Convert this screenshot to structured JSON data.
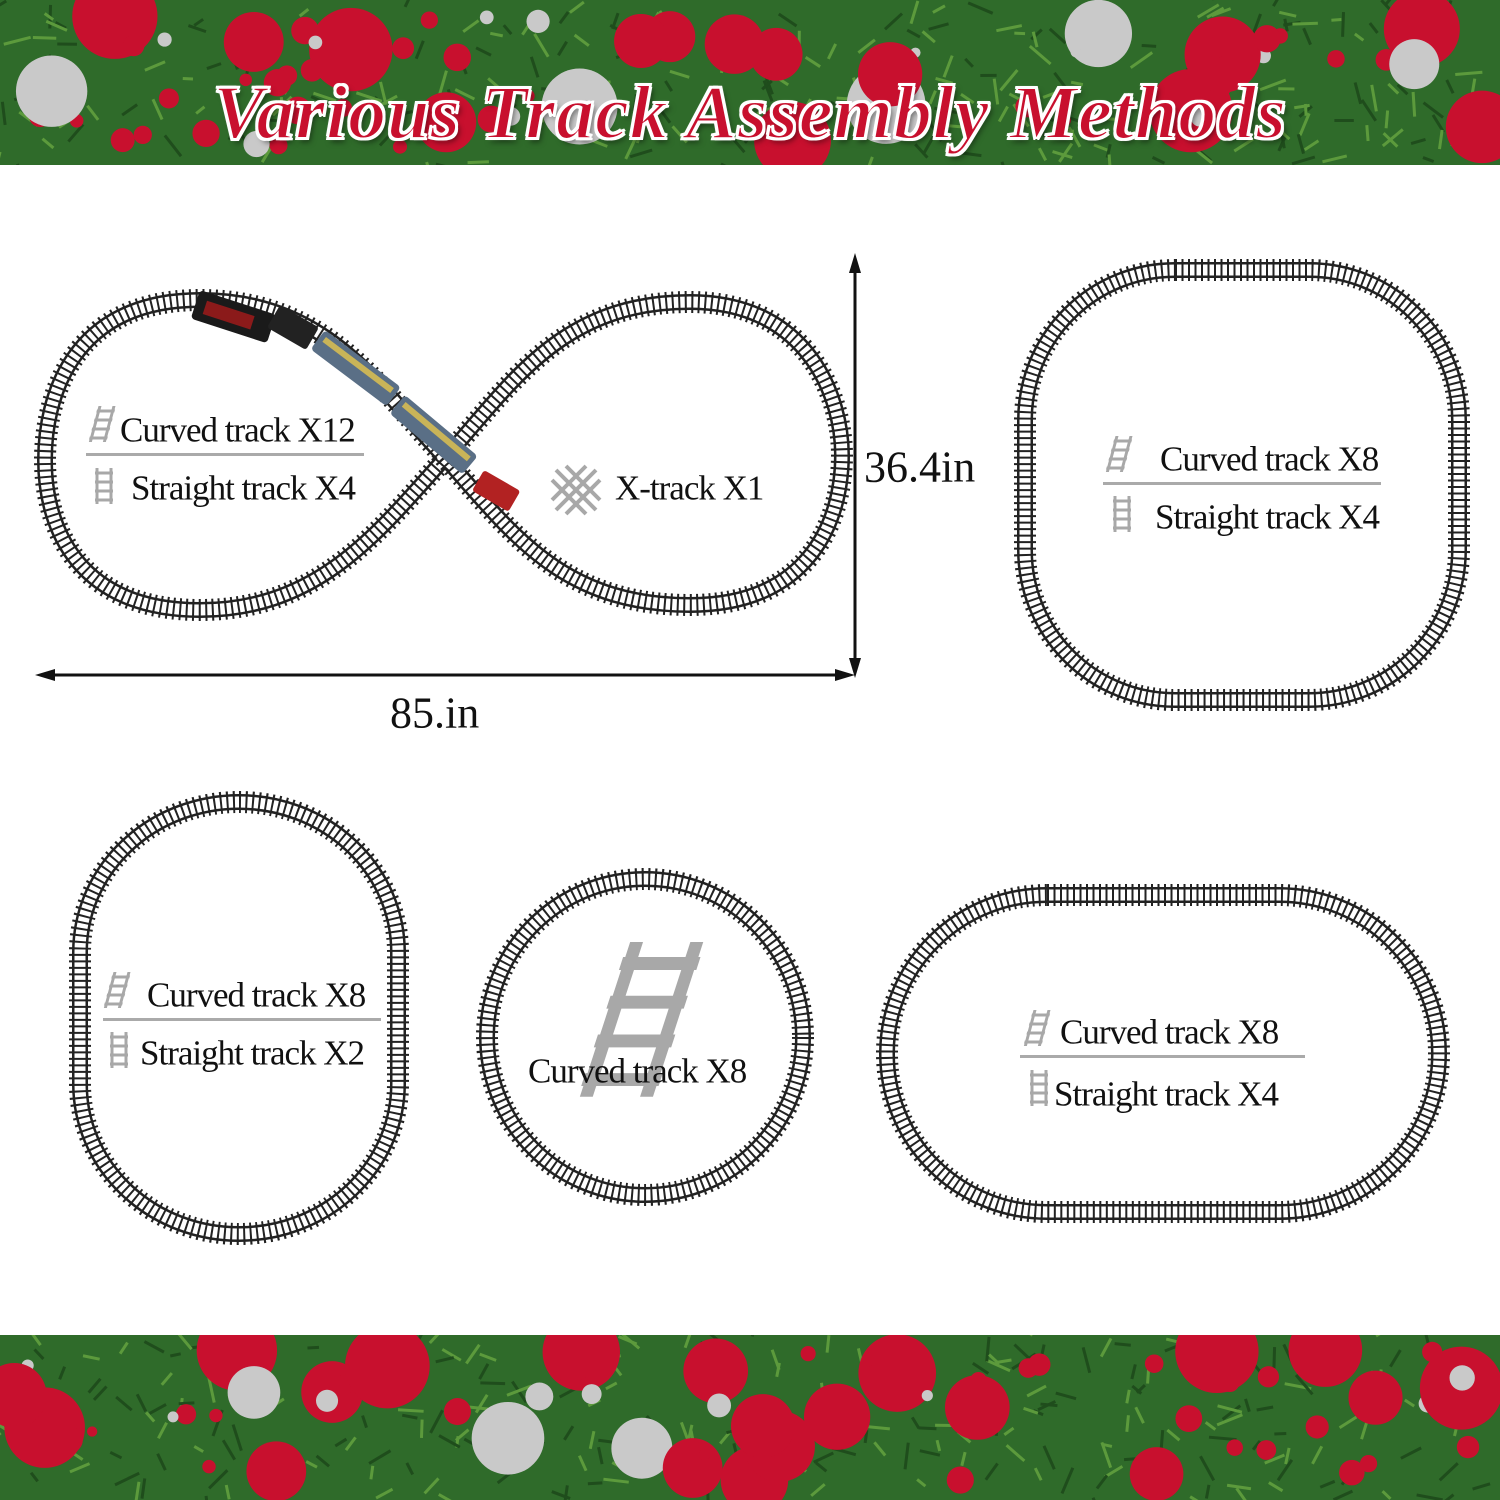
{
  "title": "Various Track Assembly Methods",
  "colors": {
    "title": "#c8102e",
    "track": "#222222",
    "icon": "#a8a8a8",
    "garland_green": "#2f6b2a",
    "ornament_red": "#c8102e",
    "ornament_silver": "#c9c9c9"
  },
  "figure_eight": {
    "curved": "Curved track X12",
    "straight": "Straight track X4",
    "xtrack": "X-track X1",
    "width": "85.in",
    "height": "36.4in"
  },
  "rounded_square": {
    "curved": "Curved track X8",
    "straight": "Straight track X4"
  },
  "tall_oval": {
    "curved": "Curved track X8",
    "straight": "Straight track X2"
  },
  "circle": {
    "curved": "Curved track X8"
  },
  "wide_oval": {
    "curved": "Curved track X8",
    "straight": "Straight track X4"
  }
}
